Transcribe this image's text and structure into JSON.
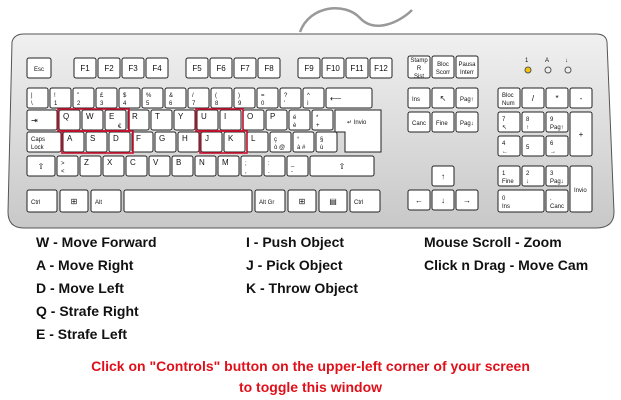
{
  "keyboard": {
    "fn_row": [
      "Esc",
      "F1",
      "F2",
      "F3",
      "F4",
      "F5",
      "F6",
      "F7",
      "F8",
      "F9",
      "F10",
      "F11",
      "F12"
    ],
    "nav_top": [
      "Stamp R Sist",
      "Bloc Scorr",
      "Pausa Interr"
    ],
    "indicators": [
      "1",
      "A",
      "↓"
    ],
    "row1_top": [
      "|",
      "!",
      "\"",
      "£",
      "$",
      "%",
      "&",
      "/",
      "(",
      ")",
      "=",
      "?",
      "^"
    ],
    "row1_bot": [
      "\\",
      "1",
      "2",
      "3",
      "4",
      "5",
      "6",
      "7",
      "8",
      "9",
      "0",
      "'",
      "ì"
    ],
    "row2": [
      "Q",
      "W",
      "E",
      "R",
      "T",
      "Y",
      "U",
      "I",
      "O",
      "P"
    ],
    "row3": [
      "Caps Lock",
      "A",
      "S",
      "D",
      "F",
      "G",
      "H",
      "J",
      "K",
      "L"
    ],
    "row4": [
      "Z",
      "X",
      "C",
      "V",
      "B",
      "N",
      "M"
    ],
    "row5": [
      "Ctrl",
      "Alt",
      "Alt Gr",
      "Ctrl"
    ],
    "enter_label": "Invio",
    "euro": "€",
    "nav_keys": [
      "Ins",
      "Pag↑",
      "Canc",
      "Fine",
      "Pag↓"
    ],
    "numpad": [
      "Bloc Num",
      "/",
      "*",
      "-",
      "7",
      "8",
      "9",
      "+",
      "4",
      "5",
      "6",
      "1",
      "2",
      "3",
      "Invio",
      "0",
      "Ins",
      ".",
      "Canc"
    ],
    "numpad_sub": [
      "↖",
      "↑",
      "Pag↑",
      "←",
      "→",
      "Fine",
      "↓",
      "Pag↓"
    ],
    "highlighted": [
      "Q",
      "W",
      "E",
      "A",
      "S",
      "D",
      "I",
      "J",
      "K"
    ]
  },
  "controls_left": [
    "W - Move Forward",
    "A - Move Right",
    "D - Move Left",
    "Q - Strafe Right",
    "E - Strafe Left"
  ],
  "controls_middle": [
    "I - Push Object",
    "J - Pick Object",
    "K - Throw Object"
  ],
  "controls_right": [
    "Mouse Scroll - Zoom",
    "Click n Drag - Move Cam"
  ],
  "note_line1": "Click on \"Controls\" button on the upper-left corner of your screen",
  "note_line2": "to toggle this window",
  "colors": {
    "highlight": "#c8102e",
    "note": "#e0101a",
    "keyboard_body": "#d9d9d9"
  }
}
